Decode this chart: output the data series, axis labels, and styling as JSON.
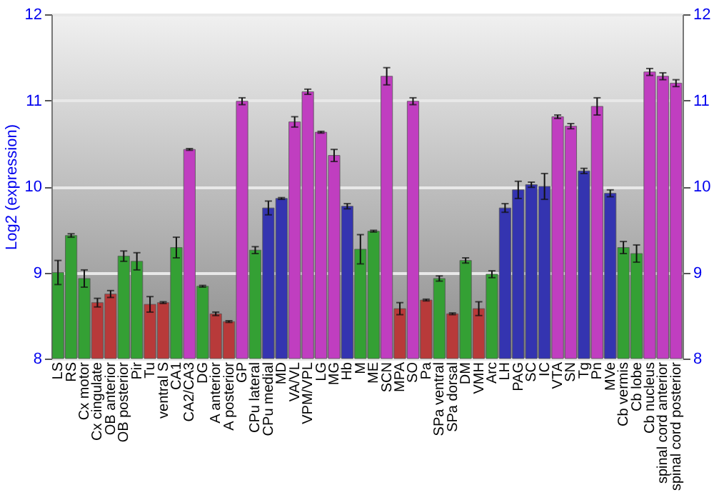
{
  "chart_data": {
    "type": "bar",
    "ylabel": "Log2 (expression)",
    "categories": [
      "LS",
      "RS",
      "Cx motor",
      "Cx cingulate",
      "OB anterior",
      "OB posterior",
      "Pir",
      "Tu",
      "ventral S",
      "CA1",
      "CA2/CA3",
      "DG",
      "A anterior",
      "A posterior",
      "GP",
      "CPu lateral",
      "CPu medial",
      "MD",
      "VA/VL",
      "VPM/VPL",
      "LG",
      "MG",
      "Hb",
      "M",
      "ME",
      "SCN",
      "MPA",
      "SO",
      "Pa",
      "SPa ventral",
      "SPa dorsal",
      "DM",
      "VMH",
      "Arc",
      "LH",
      "PAG",
      "SC",
      "IC",
      "VTA",
      "SN",
      "Tg",
      "Pn",
      "MVe",
      "Cb vermis",
      "Cb lobe",
      "Cb nucleus",
      "spinal cord anterior",
      "spinal cord posterior"
    ],
    "values": [
      9.0,
      9.43,
      8.93,
      8.65,
      8.75,
      9.19,
      9.13,
      8.63,
      8.65,
      9.29,
      10.43,
      8.84,
      8.52,
      8.43,
      10.99,
      9.26,
      9.75,
      9.86,
      10.75,
      11.1,
      10.63,
      10.36,
      9.77,
      9.27,
      9.48,
      11.28,
      8.58,
      10.99,
      8.68,
      8.93,
      8.52,
      9.14,
      8.58,
      8.98,
      9.75,
      9.96,
      10.02,
      10.0,
      10.81,
      10.7,
      10.18,
      10.93,
      9.92,
      9.29,
      9.22,
      11.33,
      11.28,
      11.2
    ],
    "errors": [
      0.14,
      0.02,
      0.1,
      0.05,
      0.04,
      0.06,
      0.1,
      0.09,
      0.01,
      0.12,
      0.01,
      0.01,
      0.02,
      0.01,
      0.04,
      0.04,
      0.08,
      0.01,
      0.06,
      0.03,
      0.01,
      0.07,
      0.03,
      0.17,
      0.01,
      0.1,
      0.07,
      0.04,
      0.01,
      0.03,
      0.01,
      0.03,
      0.08,
      0.04,
      0.05,
      0.1,
      0.03,
      0.15,
      0.02,
      0.03,
      0.03,
      0.1,
      0.04,
      0.07,
      0.1,
      0.04,
      0.04,
      0.04
    ],
    "colors": [
      "#34a034",
      "#34a034",
      "#34a034",
      "#b83a3a",
      "#b83a3a",
      "#34a034",
      "#34a034",
      "#b83a3a",
      "#b83a3a",
      "#34a034",
      "#c03ec0",
      "#34a034",
      "#b83a3a",
      "#b83a3a",
      "#c03ec0",
      "#34a034",
      "#3434b0",
      "#3434b0",
      "#c03ec0",
      "#c03ec0",
      "#c03ec0",
      "#c03ec0",
      "#3434b0",
      "#34a034",
      "#34a034",
      "#c03ec0",
      "#b83a3a",
      "#c03ec0",
      "#b83a3a",
      "#34a034",
      "#b83a3a",
      "#34a034",
      "#b83a3a",
      "#34a034",
      "#3434b0",
      "#3434b0",
      "#3434b0",
      "#3434b0",
      "#c03ec0",
      "#c03ec0",
      "#3434b0",
      "#c03ec0",
      "#3434b0",
      "#34a034",
      "#34a034",
      "#c03ec0",
      "#c03ec0",
      "#c03ec0"
    ],
    "ylim": [
      8,
      12
    ],
    "yticks": [
      8,
      9,
      10,
      11,
      12
    ],
    "y2lim": [
      8,
      12
    ],
    "y2ticks": [
      8,
      9,
      10,
      11,
      12
    ],
    "grid": "y"
  }
}
